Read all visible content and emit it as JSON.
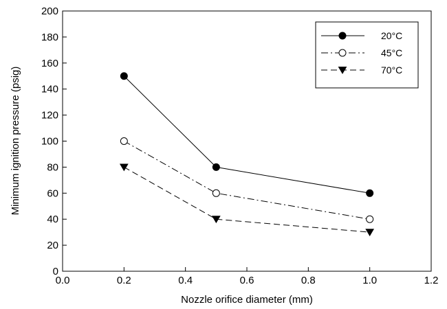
{
  "chart_data": {
    "type": "line",
    "xlabel": "Nozzle orifice diameter (mm)",
    "ylabel": "Minimum ignition pressure (psig)",
    "xlim": [
      0.0,
      1.2
    ],
    "ylim": [
      0,
      200
    ],
    "xticks": [
      "0.0",
      "0.2",
      "0.4",
      "0.6",
      "0.8",
      "1.0",
      "1.2"
    ],
    "yticks": [
      "0",
      "20",
      "40",
      "60",
      "80",
      "100",
      "120",
      "140",
      "160",
      "180",
      "200"
    ],
    "grid": false,
    "legend_position": "top-right",
    "series": [
      {
        "name": "20°C",
        "marker": "filled-circle",
        "line_style": "solid",
        "x": [
          0.2,
          0.5,
          1.0
        ],
        "y": [
          150,
          80,
          60
        ]
      },
      {
        "name": "45°C",
        "marker": "open-circle",
        "line_style": "dash-dot",
        "x": [
          0.2,
          0.5,
          1.0
        ],
        "y": [
          100,
          60,
          40
        ]
      },
      {
        "name": "70°C",
        "marker": "filled-triangle-down",
        "line_style": "dashed",
        "x": [
          0.2,
          0.5,
          1.0
        ],
        "y": [
          80,
          40,
          30
        ]
      }
    ]
  }
}
